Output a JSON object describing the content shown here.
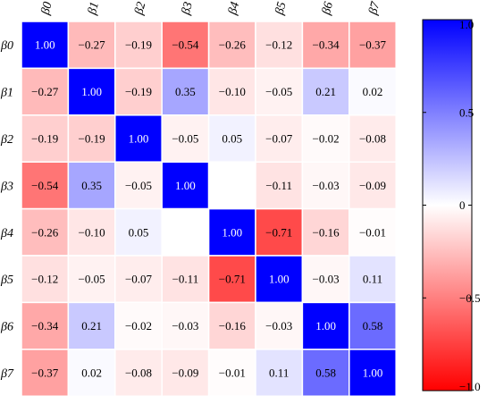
{
  "chart_data": {
    "type": "heatmap",
    "title": "",
    "x_labels": [
      "β0",
      "β1",
      "β2",
      "β3",
      "β4",
      "β5",
      "β6",
      "β7"
    ],
    "y_labels": [
      "β0",
      "β1",
      "β2",
      "β3",
      "β4",
      "β5",
      "β6",
      "β7"
    ],
    "values": [
      [
        1.0,
        -0.27,
        -0.19,
        -0.54,
        -0.26,
        -0.12,
        -0.34,
        -0.37
      ],
      [
        -0.27,
        1.0,
        -0.19,
        0.35,
        -0.1,
        -0.05,
        0.21,
        0.02
      ],
      [
        -0.19,
        -0.19,
        1.0,
        -0.05,
        0.05,
        -0.07,
        -0.02,
        -0.08
      ],
      [
        -0.54,
        0.35,
        -0.05,
        1.0,
        null,
        -0.11,
        -0.03,
        -0.09
      ],
      [
        -0.26,
        -0.1,
        0.05,
        null,
        1.0,
        -0.71,
        -0.16,
        -0.01
      ],
      [
        -0.12,
        -0.05,
        -0.07,
        -0.11,
        -0.71,
        1.0,
        -0.03,
        0.11
      ],
      [
        -0.34,
        0.21,
        -0.02,
        -0.03,
        -0.16,
        -0.03,
        1.0,
        0.58
      ],
      [
        -0.37,
        0.02,
        -0.08,
        -0.09,
        -0.01,
        0.11,
        0.58,
        1.0
      ]
    ],
    "value_labels": [
      [
        "1.00",
        "−0.27",
        "−0.19",
        "−0.54",
        "−0.26",
        "−0.12",
        "−0.34",
        "−0.37"
      ],
      [
        "−0.27",
        "1.00",
        "−0.19",
        "0.35",
        "−0.10",
        "−0.05",
        "0.21",
        "0.02"
      ],
      [
        "−0.19",
        "−0.19",
        "1.00",
        "−0.05",
        "0.05",
        "−0.07",
        "−0.02",
        "−0.08"
      ],
      [
        "−0.54",
        "0.35",
        "−0.05",
        "1.00",
        "",
        "−0.11",
        "−0.03",
        "−0.09"
      ],
      [
        "−0.26",
        "−0.10",
        "0.05",
        "",
        "1.00",
        "−0.71",
        "−0.16",
        "−0.01"
      ],
      [
        "−0.12",
        "−0.05",
        "−0.07",
        "−0.11",
        "−0.71",
        "1.00",
        "−0.03",
        "0.11"
      ],
      [
        "−0.34",
        "0.21",
        "−0.02",
        "−0.03",
        "−0.16",
        "−0.03",
        "1.00",
        "0.58"
      ],
      [
        "−0.37",
        "0.02",
        "−0.08",
        "−0.09",
        "−0.01",
        "0.11",
        "0.58",
        "1.00"
      ]
    ],
    "colorbar": {
      "range": [
        -1.0,
        1.0
      ],
      "tick_values": [
        1.0,
        0.5,
        0,
        -0.5,
        -1.0
      ],
      "tick_labels": [
        "1.0",
        "0.5",
        "0",
        "−0.5",
        "−1.0"
      ],
      "colors": {
        "negative": "#ff0000",
        "zero": "#ffffff",
        "positive": "#0000ff"
      }
    },
    "grid": true,
    "legend": "right"
  }
}
